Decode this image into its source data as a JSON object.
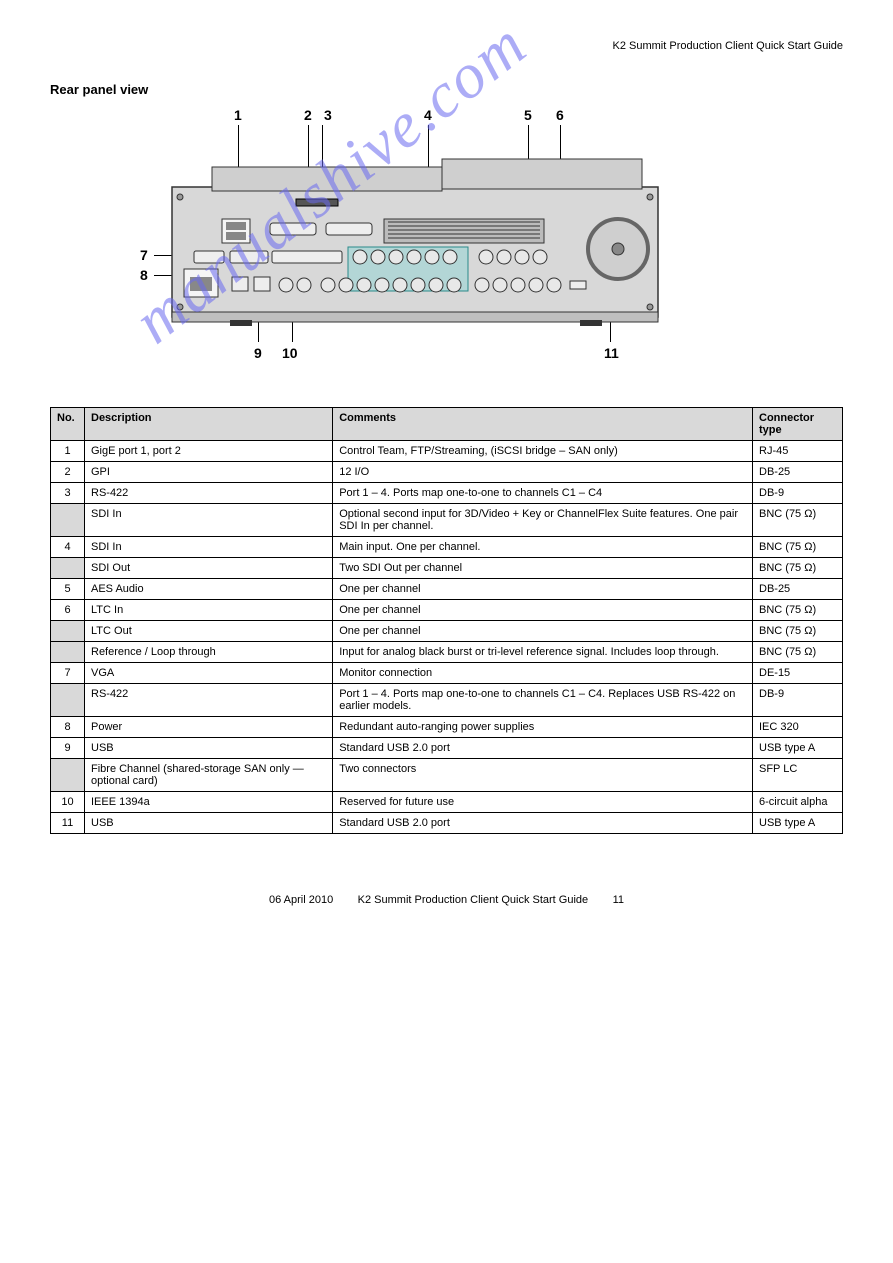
{
  "header": {
    "right": "K2 Summit Production Client Quick Start Guide"
  },
  "section_title": "Rear panel view",
  "watermark": "manualshive.com",
  "callouts": {
    "c1": "1",
    "c2": "2",
    "c3": "3",
    "c4": "4",
    "c5": "5",
    "c6": "6",
    "c7": "7",
    "c8": "8",
    "c9": "9",
    "c10": "10",
    "c11": "11"
  },
  "table": {
    "col_no": "No.",
    "col_desc": "Description",
    "col_comm": "Comments",
    "col_type": "Connector type",
    "rows": [
      {
        "no": "1",
        "desc": "GigE port 1, port 2",
        "comm": "Control Team, FTP/Streaming, (iSCSI bridge – SAN only)",
        "typ": "RJ-45"
      },
      {
        "no": "2",
        "desc": "GPI",
        "comm": "12 I/O",
        "typ": "DB-25"
      },
      {
        "no": "3",
        "desc": "RS-422",
        "comm": "Port 1 – 4. Ports map one-to-one to channels C1 – C4",
        "typ": "DB-9"
      },
      {
        "no": "",
        "desc": "SDI In",
        "comm": "Optional second input for 3D/Video + Key or ChannelFlex Suite features. One pair SDI In per channel.",
        "typ": "BNC (75 Ω)"
      },
      {
        "no": "4",
        "desc": "SDI In",
        "comm": "Main input. One per channel.",
        "typ": "BNC (75 Ω)"
      },
      {
        "no": "",
        "desc": "SDI Out",
        "comm": "Two SDI Out per channel",
        "typ": "BNC (75 Ω)"
      },
      {
        "no": "5",
        "desc": "AES Audio",
        "comm": "One per channel",
        "typ": "DB-25"
      },
      {
        "no": "6",
        "desc": "LTC In",
        "comm": "One per channel",
        "typ": "BNC (75 Ω)"
      },
      {
        "no": "",
        "desc": "LTC Out",
        "comm": "One per channel",
        "typ": "BNC (75 Ω)"
      },
      {
        "no": "",
        "desc": "Reference / Loop through",
        "comm": "Input for analog black burst or tri-level reference signal. Includes loop through.",
        "typ": "BNC (75 Ω)"
      },
      {
        "no": "7",
        "desc": "VGA",
        "comm": "Monitor connection",
        "typ": "DE-15"
      },
      {
        "no": "",
        "desc": "RS-422",
        "comm": "Port 1 – 4. Ports map one-to-one to channels C1 – C4. Replaces USB RS-422 on earlier models.",
        "typ": "DB-9"
      },
      {
        "no": "8",
        "desc": "Power",
        "comm": "Redundant auto-ranging power supplies",
        "typ": "IEC 320"
      },
      {
        "no": "9",
        "desc": "USB",
        "comm": "Standard USB 2.0 port",
        "typ": "USB type A"
      },
      {
        "no": "",
        "desc": "Fibre Channel (shared-storage SAN only — optional card)",
        "comm": "Two connectors",
        "typ": "SFP LC"
      },
      {
        "no": "10",
        "desc": "IEEE 1394a",
        "comm": "Reserved for future use",
        "typ": "6-circuit alpha"
      },
      {
        "no": "11",
        "desc": "USB",
        "comm": "Standard USB 2.0 port",
        "typ": "USB type A"
      }
    ]
  },
  "footer": {
    "date": "06 April 2010",
    "title": "K2 Summit Production Client Quick Start Guide",
    "page": "11"
  },
  "style": {
    "header_bg": "#d9d9d9",
    "border": "#000000",
    "watermark_color": "#6a6af0"
  }
}
